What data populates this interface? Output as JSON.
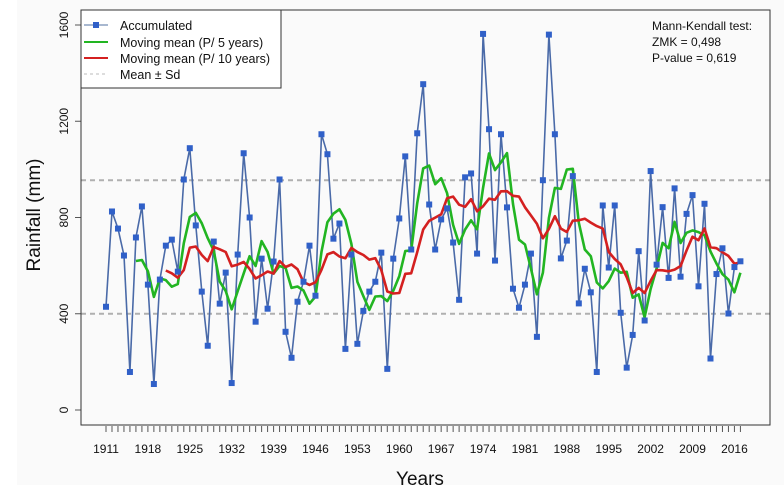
{
  "chart_data": {
    "type": "line",
    "xlabel": "Years",
    "ylabel": "Rainfall (mm)",
    "ylim": [
      0,
      1600
    ],
    "yticks": [
      0,
      400,
      800,
      1200,
      1600
    ],
    "xlim": [
      1911,
      2017
    ],
    "xticks": [
      1911,
      1918,
      1925,
      1932,
      1939,
      1946,
      1953,
      1960,
      1967,
      1974,
      1981,
      1988,
      1995,
      2002,
      2009,
      2016
    ],
    "grid": false,
    "legend_position": "top-left",
    "x_start": 1911,
    "series": [
      {
        "name": "Accumulated",
        "color": "#4a6aa8",
        "marker_color": "#3060c8",
        "values": [
          429,
          825,
          754,
          642,
          158,
          717,
          846,
          521,
          108,
          542,
          683,
          708,
          575,
          958,
          1088,
          767,
          492,
          267,
          700,
          442,
          571,
          112,
          646,
          1067,
          800,
          367,
          629,
          421,
          617,
          958,
          325,
          217,
          450,
          533,
          683,
          475,
          1146,
          1063,
          712,
          775,
          254,
          646,
          275,
          412,
          492,
          533,
          654,
          171,
          629,
          796,
          1054,
          667,
          1150,
          1354,
          854,
          667,
          792,
          838,
          696,
          458,
          967,
          983,
          650,
          1563,
          1167,
          621,
          1146,
          842,
          504,
          425,
          521,
          650,
          304,
          955,
          1560,
          1146,
          630,
          704,
          972,
          443,
          587,
          489,
          158,
          850,
          592,
          850,
          404,
          176,
          312,
          660,
          372,
          993,
          604,
          843,
          549,
          921,
          554,
          815,
          893,
          514,
          857,
          214,
          565,
          672,
          401,
          594,
          618
        ]
      },
      {
        "name": "Moving mean (P/ 5 years)",
        "color": "#22b522",
        "window": 5
      },
      {
        "name": "Moving mean (P/ 10 years)",
        "color": "#d42020",
        "window": 10
      }
    ],
    "reference_lines": {
      "name": "Mean ± Sd",
      "color": "#b0b0b0",
      "mean_plus_sd": 955,
      "mean_minus_sd": 400
    },
    "annotation": [
      "Mann-Kendall test:",
      "ZMK = 0,498",
      "P-value = 0,619"
    ]
  }
}
